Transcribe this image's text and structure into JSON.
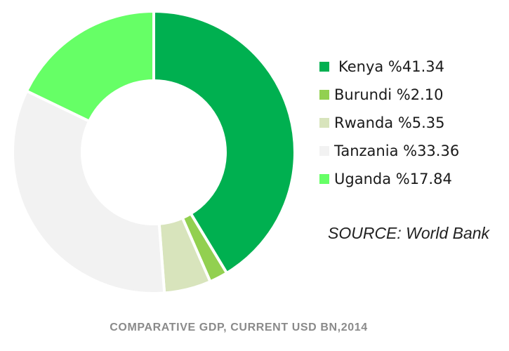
{
  "chart_data": {
    "type": "pie",
    "style": "donut",
    "title": "",
    "caption": "COMPARATIVE  GDP, CURRENT  USD BN,2014",
    "source": "SOURCE: World Bank",
    "legend_position": "right",
    "slices": [
      {
        "name": "Kenya",
        "value": 41.34,
        "label": "Kenya %41.34",
        "color": "#00b050"
      },
      {
        "name": "Burundi",
        "value": 2.1,
        "label": "Burundi %2.10",
        "color": "#92d050"
      },
      {
        "name": "Rwanda",
        "value": 5.35,
        "label": "Rwanda %5.35",
        "color": "#d8e4bc"
      },
      {
        "name": "Tanzania",
        "value": 33.36,
        "label": "Tanzania %33.36",
        "color": "#f2f2f2"
      },
      {
        "name": "Uganda",
        "value": 17.84,
        "label": "Uganda %17.84",
        "color": "#66ff66"
      }
    ]
  }
}
